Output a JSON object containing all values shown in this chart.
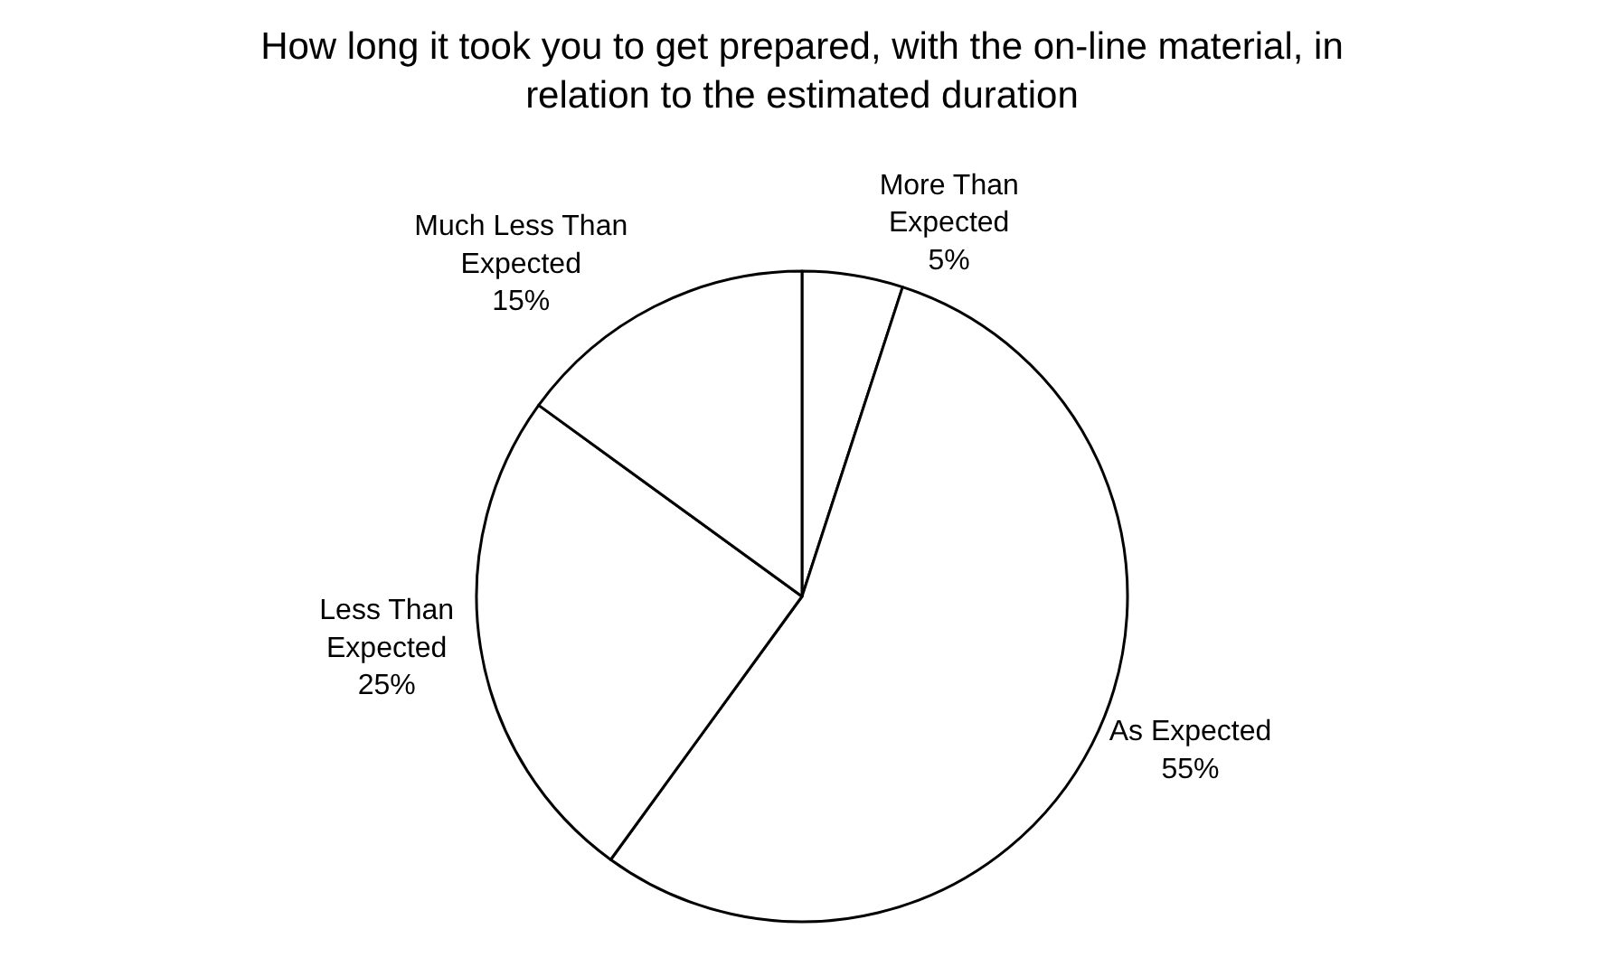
{
  "chart_data": {
    "type": "pie",
    "title": "How long it took you to get prepared, with the on-line material, in relation to the estimated duration",
    "categories": [
      "More Than Expected",
      "As Expected",
      "Less Than Expected",
      "Much Less Than Expected"
    ],
    "values": [
      5,
      55,
      25,
      15
    ],
    "value_labels": [
      "5%",
      "55%",
      "25%",
      "15%"
    ],
    "colors": [
      "#ffffff",
      "#ffffff",
      "#ffffff",
      "#ffffff"
    ],
    "legend": false
  }
}
